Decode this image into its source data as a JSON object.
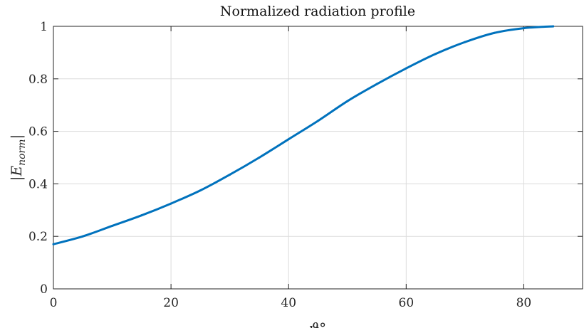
{
  "chart_data": {
    "type": "line",
    "title": "Normalized radiation profile",
    "xlabel": "ϑ°",
    "ylabel": "|E_norm|",
    "ylabel_main": "|E",
    "ylabel_sub": "norm",
    "ylabel_close": "|",
    "xlim": [
      0,
      90
    ],
    "ylim": [
      0,
      1
    ],
    "x_ticks": [
      "0",
      "20",
      "40",
      "60",
      "80"
    ],
    "y_ticks": [
      "0",
      "0.2",
      "0.4",
      "0.6",
      "0.8",
      "1"
    ],
    "grid": true,
    "line_color": "#0072BD",
    "series": [
      {
        "x": [
          0,
          5,
          10,
          15,
          20,
          25,
          30,
          35,
          40,
          45,
          50,
          55,
          60,
          65,
          70,
          75,
          80,
          85
        ],
        "values": [
          0.17,
          0.2,
          0.24,
          0.28,
          0.325,
          0.375,
          0.435,
          0.5,
          0.57,
          0.64,
          0.715,
          0.78,
          0.84,
          0.895,
          0.94,
          0.975,
          0.993,
          1.0
        ]
      }
    ]
  }
}
